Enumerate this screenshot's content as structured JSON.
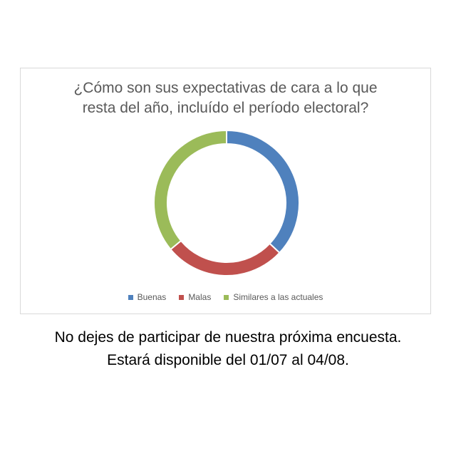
{
  "chart_data": {
    "type": "pie",
    "title_lines": [
      "¿Cómo son sus expectativas de cara a lo que",
      "resta del año, incluído el período electoral?"
    ],
    "categories": [
      "Buenas",
      "Malas",
      "Similares a las actuales"
    ],
    "values": [
      37,
      27,
      36
    ],
    "colors": [
      "#4f81bd",
      "#c0504d",
      "#9bbb59"
    ],
    "legend_position": "bottom",
    "style": "donut"
  },
  "footer": {
    "line1": "No dejes de participar de nuestra próxima encuesta.",
    "line2": "Estará disponible del 01/07 al 04/08."
  }
}
